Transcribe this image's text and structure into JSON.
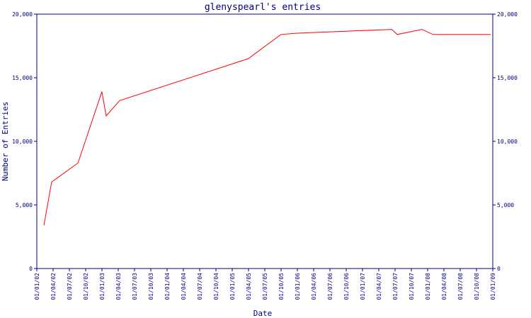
{
  "chart_data": {
    "type": "line",
    "title": "glenyspearl's entries",
    "xlabel": "Date",
    "ylabel": "Number of Entries",
    "ylim": [
      0,
      20000
    ],
    "yticks": [
      0,
      5000,
      10000,
      15000,
      20000
    ],
    "ytick_labels": [
      "0",
      "5,000",
      "10,000",
      "15,000",
      "20,000"
    ],
    "xlim": [
      "2002-01-01",
      "2009-01-01"
    ],
    "xtick_labels": [
      "01/01/02",
      "01/04/02",
      "01/07/02",
      "01/10/02",
      "01/01/03",
      "01/04/03",
      "01/07/03",
      "01/10/03",
      "01/01/04",
      "01/04/04",
      "01/07/04",
      "01/10/04",
      "01/01/05",
      "01/04/05",
      "01/07/05",
      "01/10/05",
      "01/01/06",
      "01/04/06",
      "01/07/06",
      "01/10/06",
      "01/01/07",
      "01/04/07",
      "01/07/07",
      "01/10/07",
      "01/01/08",
      "01/04/08",
      "01/07/08",
      "01/10/08",
      "01/01/09"
    ],
    "grid": false,
    "line_color": "#ff0000",
    "axis_color": "#000080",
    "series": [
      {
        "x": [
          "2002-02-10",
          "2002-03-25",
          "2002-08-20",
          "2003-01-01",
          "2003-01-25",
          "2003-04-10",
          "2005-04-01",
          "2005-10-01",
          "2006-01-01",
          "2007-06-15",
          "2007-07-15",
          "2007-12-01",
          "2008-02-01",
          "2008-12-20"
        ],
        "y": [
          3400,
          6800,
          8300,
          13900,
          12000,
          13200,
          16500,
          18400,
          18500,
          18800,
          18400,
          18800,
          18400,
          18400
        ]
      }
    ]
  }
}
